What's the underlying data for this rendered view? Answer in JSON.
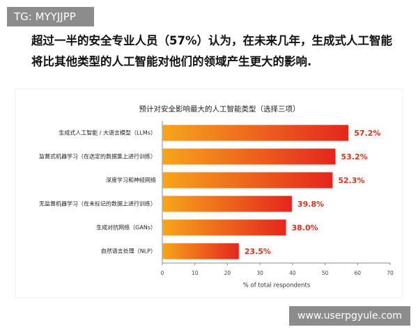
{
  "badge": "TG: MYYJJPP",
  "heading": "超过一半的安全专业人员（57%）认为，在未来几年，生成式人工智能将比其他类型的人工智能对他们的领域产生更大的影响.",
  "watermark": "www.userpgyule.com",
  "chart_data": {
    "type": "barh",
    "title": "预计对安全影响最大的人工智能类型（选择三项）",
    "xlabel": "% of total respondents",
    "categories": [
      "生成式人工智能 / 大语言模型（LLMs）",
      "监督式机器学习（在选定的数据集上进行训练）",
      "深度学习和神经网络",
      "无监督机器学习（在未标记的数据上进行训练）",
      "生成对抗网络（GANs）",
      "自然语言处理（NLP）"
    ],
    "values": [
      57.2,
      53.2,
      52.3,
      39.8,
      38.0,
      23.5
    ],
    "value_labels": [
      "57.2%",
      "53.2%",
      "52.3%",
      "39.8%",
      "38.0%",
      "23.5%"
    ],
    "xlim": [
      0,
      70
    ],
    "xticks": [
      0,
      10,
      20,
      30,
      40,
      50,
      60,
      70
    ],
    "color_start": "#f7a51c",
    "color_end": "#e4261d",
    "label_color": "#d9331f"
  }
}
